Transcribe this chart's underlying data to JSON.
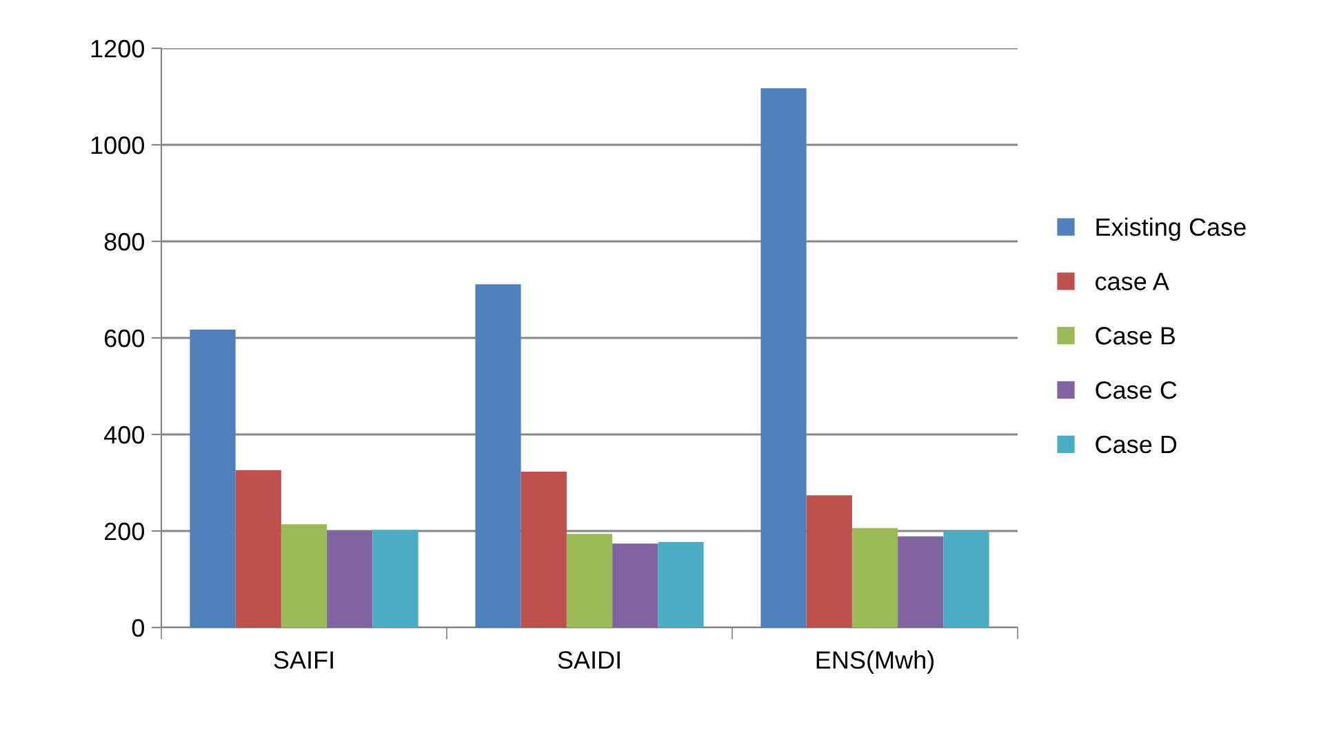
{
  "chart_data": {
    "type": "bar",
    "categories": [
      "SAIFI",
      "SAIDI",
      "ENS(Mwh)"
    ],
    "series": [
      {
        "name": "Existing Case",
        "color": "#4f81bd",
        "values": [
          617,
          711,
          1117
        ]
      },
      {
        "name": "case A",
        "color": "#c0504d",
        "values": [
          326,
          323,
          274
        ]
      },
      {
        "name": "Case B",
        "color": "#9bbb59",
        "values": [
          214,
          194,
          206
        ]
      },
      {
        "name": "Case C",
        "color": "#8064a2",
        "values": [
          200,
          174,
          189
        ]
      },
      {
        "name": "Case D",
        "color": "#4bacc6",
        "values": [
          202,
          177,
          200
        ]
      }
    ],
    "ylim": [
      0,
      1200
    ],
    "yticks": [
      0,
      200,
      400,
      600,
      800,
      1000,
      1200
    ],
    "grid": "y",
    "legend": "right"
  }
}
